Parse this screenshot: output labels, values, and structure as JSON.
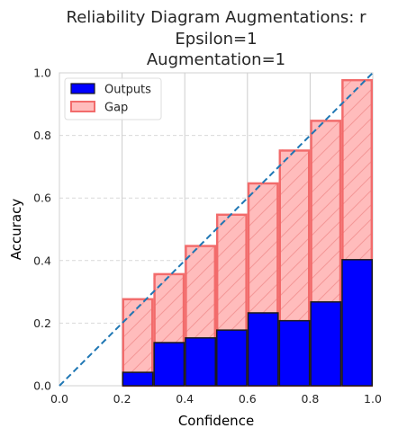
{
  "chart_data": {
    "type": "bar",
    "title_lines": [
      "Reliability Diagram Augmentations: r",
      "Epsilon=1",
      "Augmentation=1"
    ],
    "xlabel": "Confidence",
    "ylabel": "Accuracy",
    "xlim": [
      0,
      1
    ],
    "ylim": [
      0,
      1
    ],
    "x_ticks": [
      "0.0",
      "0.2",
      "0.4",
      "0.6",
      "0.8",
      "1.0"
    ],
    "y_ticks": [
      "0.0",
      "0.2",
      "0.4",
      "0.6",
      "0.8",
      "1.0"
    ],
    "bin_edges": [
      0.0,
      0.1,
      0.2,
      0.3,
      0.4,
      0.5,
      0.6,
      0.7,
      0.8,
      0.9,
      1.0
    ],
    "series": [
      {
        "name": "Outputs",
        "values": [
          0,
          0,
          0.045,
          0.14,
          0.155,
          0.18,
          0.235,
          0.21,
          0.27,
          0.405
        ],
        "color": "#0000ff",
        "edge": "#1a1a1a"
      },
      {
        "name": "Gap",
        "values": [
          0,
          0,
          0.28,
          0.36,
          0.45,
          0.55,
          0.65,
          0.755,
          0.85,
          0.98
        ],
        "color": "#ffbcbc",
        "edge": "#f26b6b"
      }
    ],
    "diagonal": {
      "style": "dashed",
      "color": "#1f77b4"
    },
    "grid": true,
    "legend_position": "top-left"
  }
}
